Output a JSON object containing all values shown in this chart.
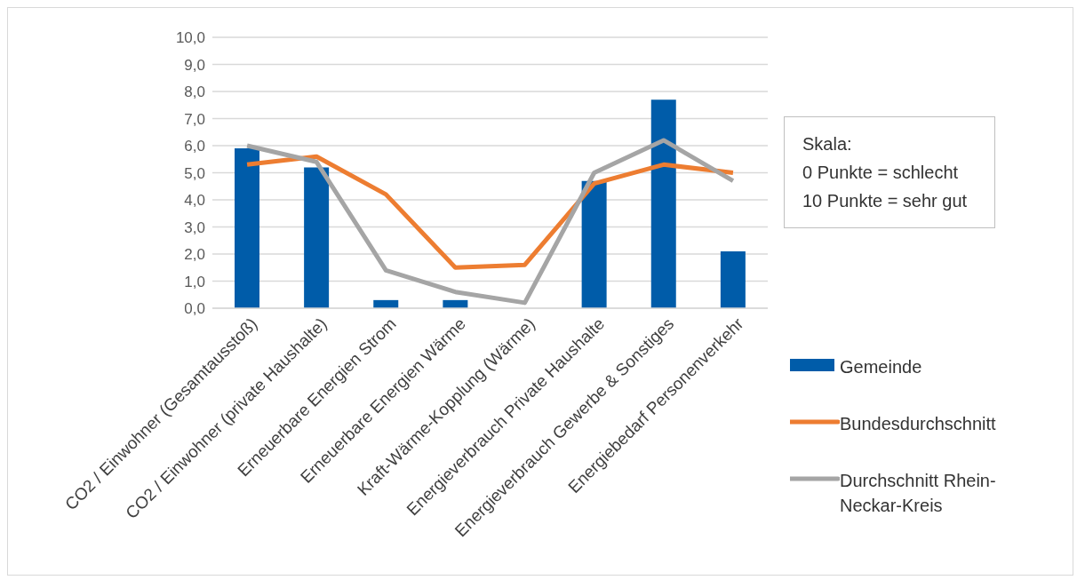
{
  "chart_data": {
    "type": "bar",
    "categories": [
      "CO2 / Einwohner (Gesamtausstoß)",
      "CO2 / Einwohner (private Haushalte)",
      "Erneuerbare Energien Strom",
      "Erneuerbare Energien Wärme",
      "Kraft-Wärme-Kopplung (Wärme)",
      "Energieverbrauch Private Haushalte",
      "Energieverbrauch Gewerbe & Sonstiges",
      "Energiebedarf Personenverkehr"
    ],
    "series": [
      {
        "name": "Gemeinde",
        "color": "#005ca9",
        "values": [
          5.9,
          5.2,
          0.3,
          0.3,
          0,
          4.7,
          7.7,
          2.1
        ]
      },
      {
        "name": "Bundesdurchschnitt",
        "type": "line",
        "color": "#ed7d31",
        "values": [
          5.3,
          5.6,
          4.2,
          1.5,
          1.6,
          4.6,
          5.3,
          5.0
        ]
      },
      {
        "name": "Durchschnitt Rhein-Neckar-Kreis",
        "type": "line",
        "color": "#a5a5a5",
        "values": [
          6.0,
          5.4,
          1.4,
          0.6,
          0.2,
          5.0,
          6.2,
          4.7
        ]
      }
    ],
    "ylim": [
      0,
      10
    ],
    "yticks": [
      {
        "value": 0,
        "label": "0,0"
      },
      {
        "value": 1,
        "label": "1,0"
      },
      {
        "value": 2,
        "label": "2,0"
      },
      {
        "value": 3,
        "label": "3,0"
      },
      {
        "value": 4,
        "label": "4,0"
      },
      {
        "value": 5,
        "label": "5,0"
      },
      {
        "value": 6,
        "label": "6,0"
      },
      {
        "value": 7,
        "label": "7,0"
      },
      {
        "value": 8,
        "label": "8,0"
      },
      {
        "value": 9,
        "label": "9,0"
      },
      {
        "value": 10,
        "label": "10,0"
      }
    ],
    "grid": "y",
    "legend": "right",
    "marker": "none",
    "line_style": "solid",
    "annotations": [
      "Skala:\n0 Punkte = schlecht\n10 Punkte = sehr gut"
    ]
  }
}
